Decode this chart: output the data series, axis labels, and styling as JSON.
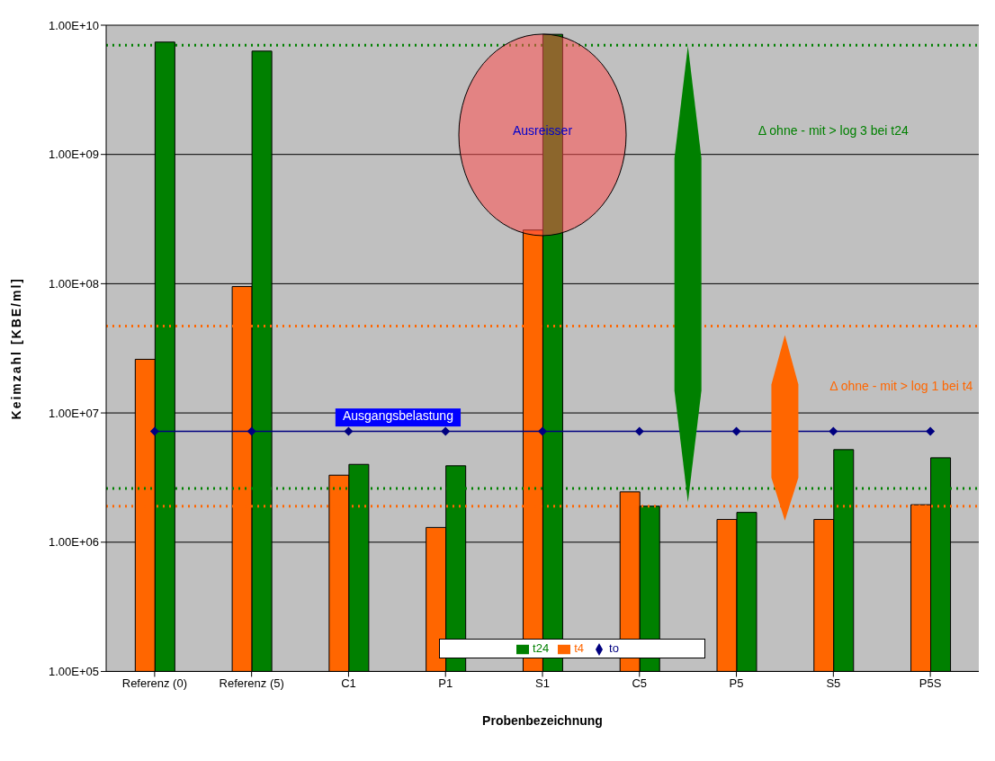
{
  "chart_data": {
    "type": "bar",
    "xlabel": "Probenbezeichnung",
    "ylabel": "Keimzahl [KBE/ml]",
    "categories": [
      "Referenz (0)",
      "Referenz (5)",
      "C1",
      "P1",
      "S1",
      "C5",
      "P5",
      "S5",
      "P5S"
    ],
    "series": [
      {
        "name": "t4",
        "color": "#ff6600",
        "values": [
          26000000,
          95000000,
          3300000,
          1300000,
          260000000,
          2450000,
          1500000,
          1500000,
          1950000
        ]
      },
      {
        "name": "t24",
        "color": "#008000",
        "values": [
          7400000000,
          6300000000,
          4000000,
          3900000,
          8500000000,
          1900000,
          1700000,
          5200000,
          4500000
        ]
      },
      {
        "name": "to",
        "type": "line",
        "color": "#000080",
        "marker": "diamond",
        "values": [
          7200000,
          7200000,
          7200000,
          7200000,
          7200000,
          7200000,
          7200000,
          7200000,
          7200000
        ]
      }
    ],
    "log": true,
    "ylim": [
      100000,
      10000000000
    ],
    "yticks": [
      {
        "value": 100000,
        "label": "1.00E+05"
      },
      {
        "value": 1000000,
        "label": "1.00E+06"
      },
      {
        "value": 10000000,
        "label": "1.00E+07"
      },
      {
        "value": 100000000,
        "label": "1.00E+08"
      },
      {
        "value": 1000000000,
        "label": "1.00E+09"
      },
      {
        "value": 10000000000,
        "label": "1.00E+10"
      }
    ],
    "grid": "y",
    "legend": "bottom",
    "ref_lines": [
      {
        "axis": "y",
        "value": 7000000000,
        "color": "#008000",
        "line_style": "dotted"
      },
      {
        "axis": "y",
        "value": 47000000,
        "color": "#ff6600",
        "line_style": "dotted"
      },
      {
        "axis": "y",
        "value": 2600000,
        "color": "#008000",
        "line_style": "dotted"
      },
      {
        "axis": "y",
        "value": 1900000,
        "color": "#ff6600",
        "line_style": "dotted"
      }
    ],
    "annotations": [
      {
        "text": "Ausreisser",
        "x": "S1",
        "y": 1500000000
      },
      "Δ ohne - mit > log 3 bei t24",
      "Δ ohne - mit > log 1 bei t4",
      {
        "text": "Ausgangsbelastung",
        "x": "C1",
        "y": 7200000
      }
    ]
  }
}
